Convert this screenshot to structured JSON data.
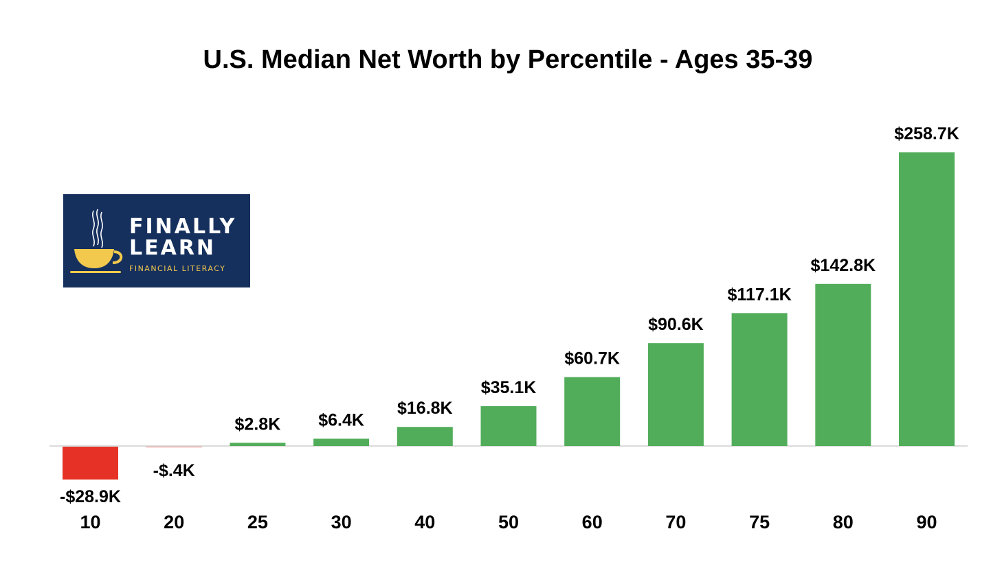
{
  "title": "U.S. Median Net Worth by Percentile - Ages 35-39",
  "logo": {
    "line1": "FINALLY",
    "line2": "LEARN",
    "tagline": "FINANCIAL LITERACY",
    "icon": "coffee-cup-icon",
    "background": "#16305e",
    "accent": "#f2c94c"
  },
  "colors": {
    "positive": "#52ad5a",
    "negative": "#e63226",
    "axis": "#cfcfcf"
  },
  "chart_data": {
    "type": "bar",
    "title": "U.S. Median Net Worth by Percentile - Ages 35-39",
    "xlabel": "",
    "ylabel": "",
    "categories": [
      "10",
      "20",
      "25",
      "30",
      "40",
      "50",
      "60",
      "70",
      "75",
      "80",
      "90"
    ],
    "values": [
      -28.9,
      -0.4,
      2.8,
      6.4,
      16.8,
      35.1,
      60.7,
      90.6,
      117.1,
      142.8,
      258.7
    ],
    "data_labels": [
      "-$28.9K",
      "-$.4K",
      "$2.8K",
      "$6.4K",
      "$16.8K",
      "$35.1K",
      "$60.7K",
      "$90.6K",
      "$117.1K",
      "$142.8K",
      "$258.7K"
    ],
    "unit": "K USD",
    "ylim": [
      -30,
      260
    ],
    "grid": false,
    "legend": "none"
  }
}
